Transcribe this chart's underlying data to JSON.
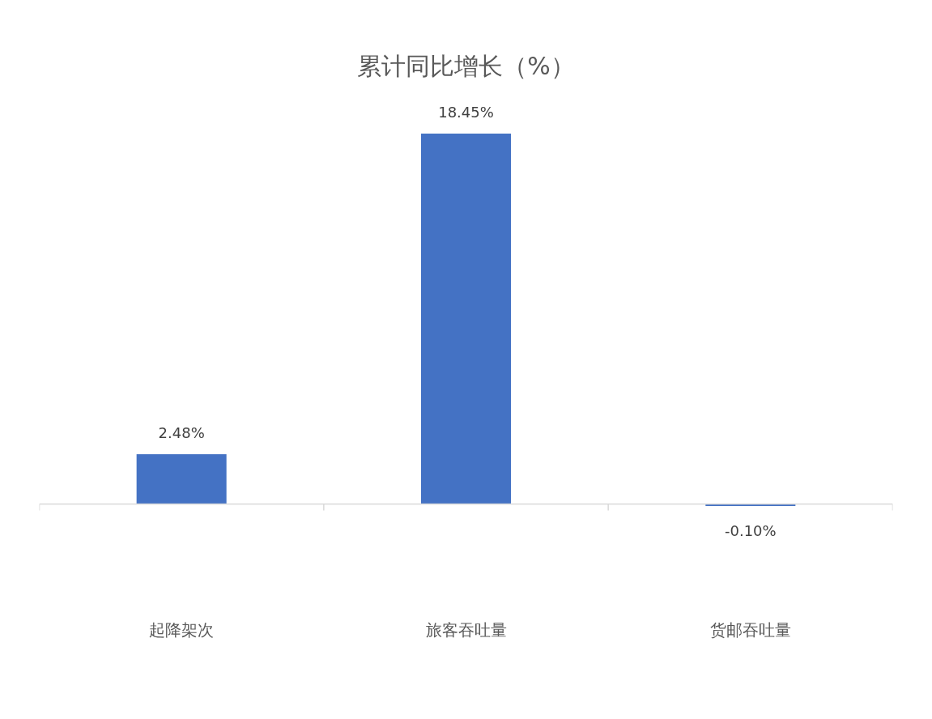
{
  "chart_data": {
    "type": "bar",
    "title": "累计同比增长（%）",
    "categories": [
      "起降架次",
      "旅客吞吐量",
      "货邮吞吐量"
    ],
    "values": [
      2.48,
      18.45,
      -0.1
    ],
    "value_labels": [
      "2.48%",
      "18.45%",
      "-0.10%"
    ],
    "color": "#4472c4",
    "tick_labels": "x"
  }
}
